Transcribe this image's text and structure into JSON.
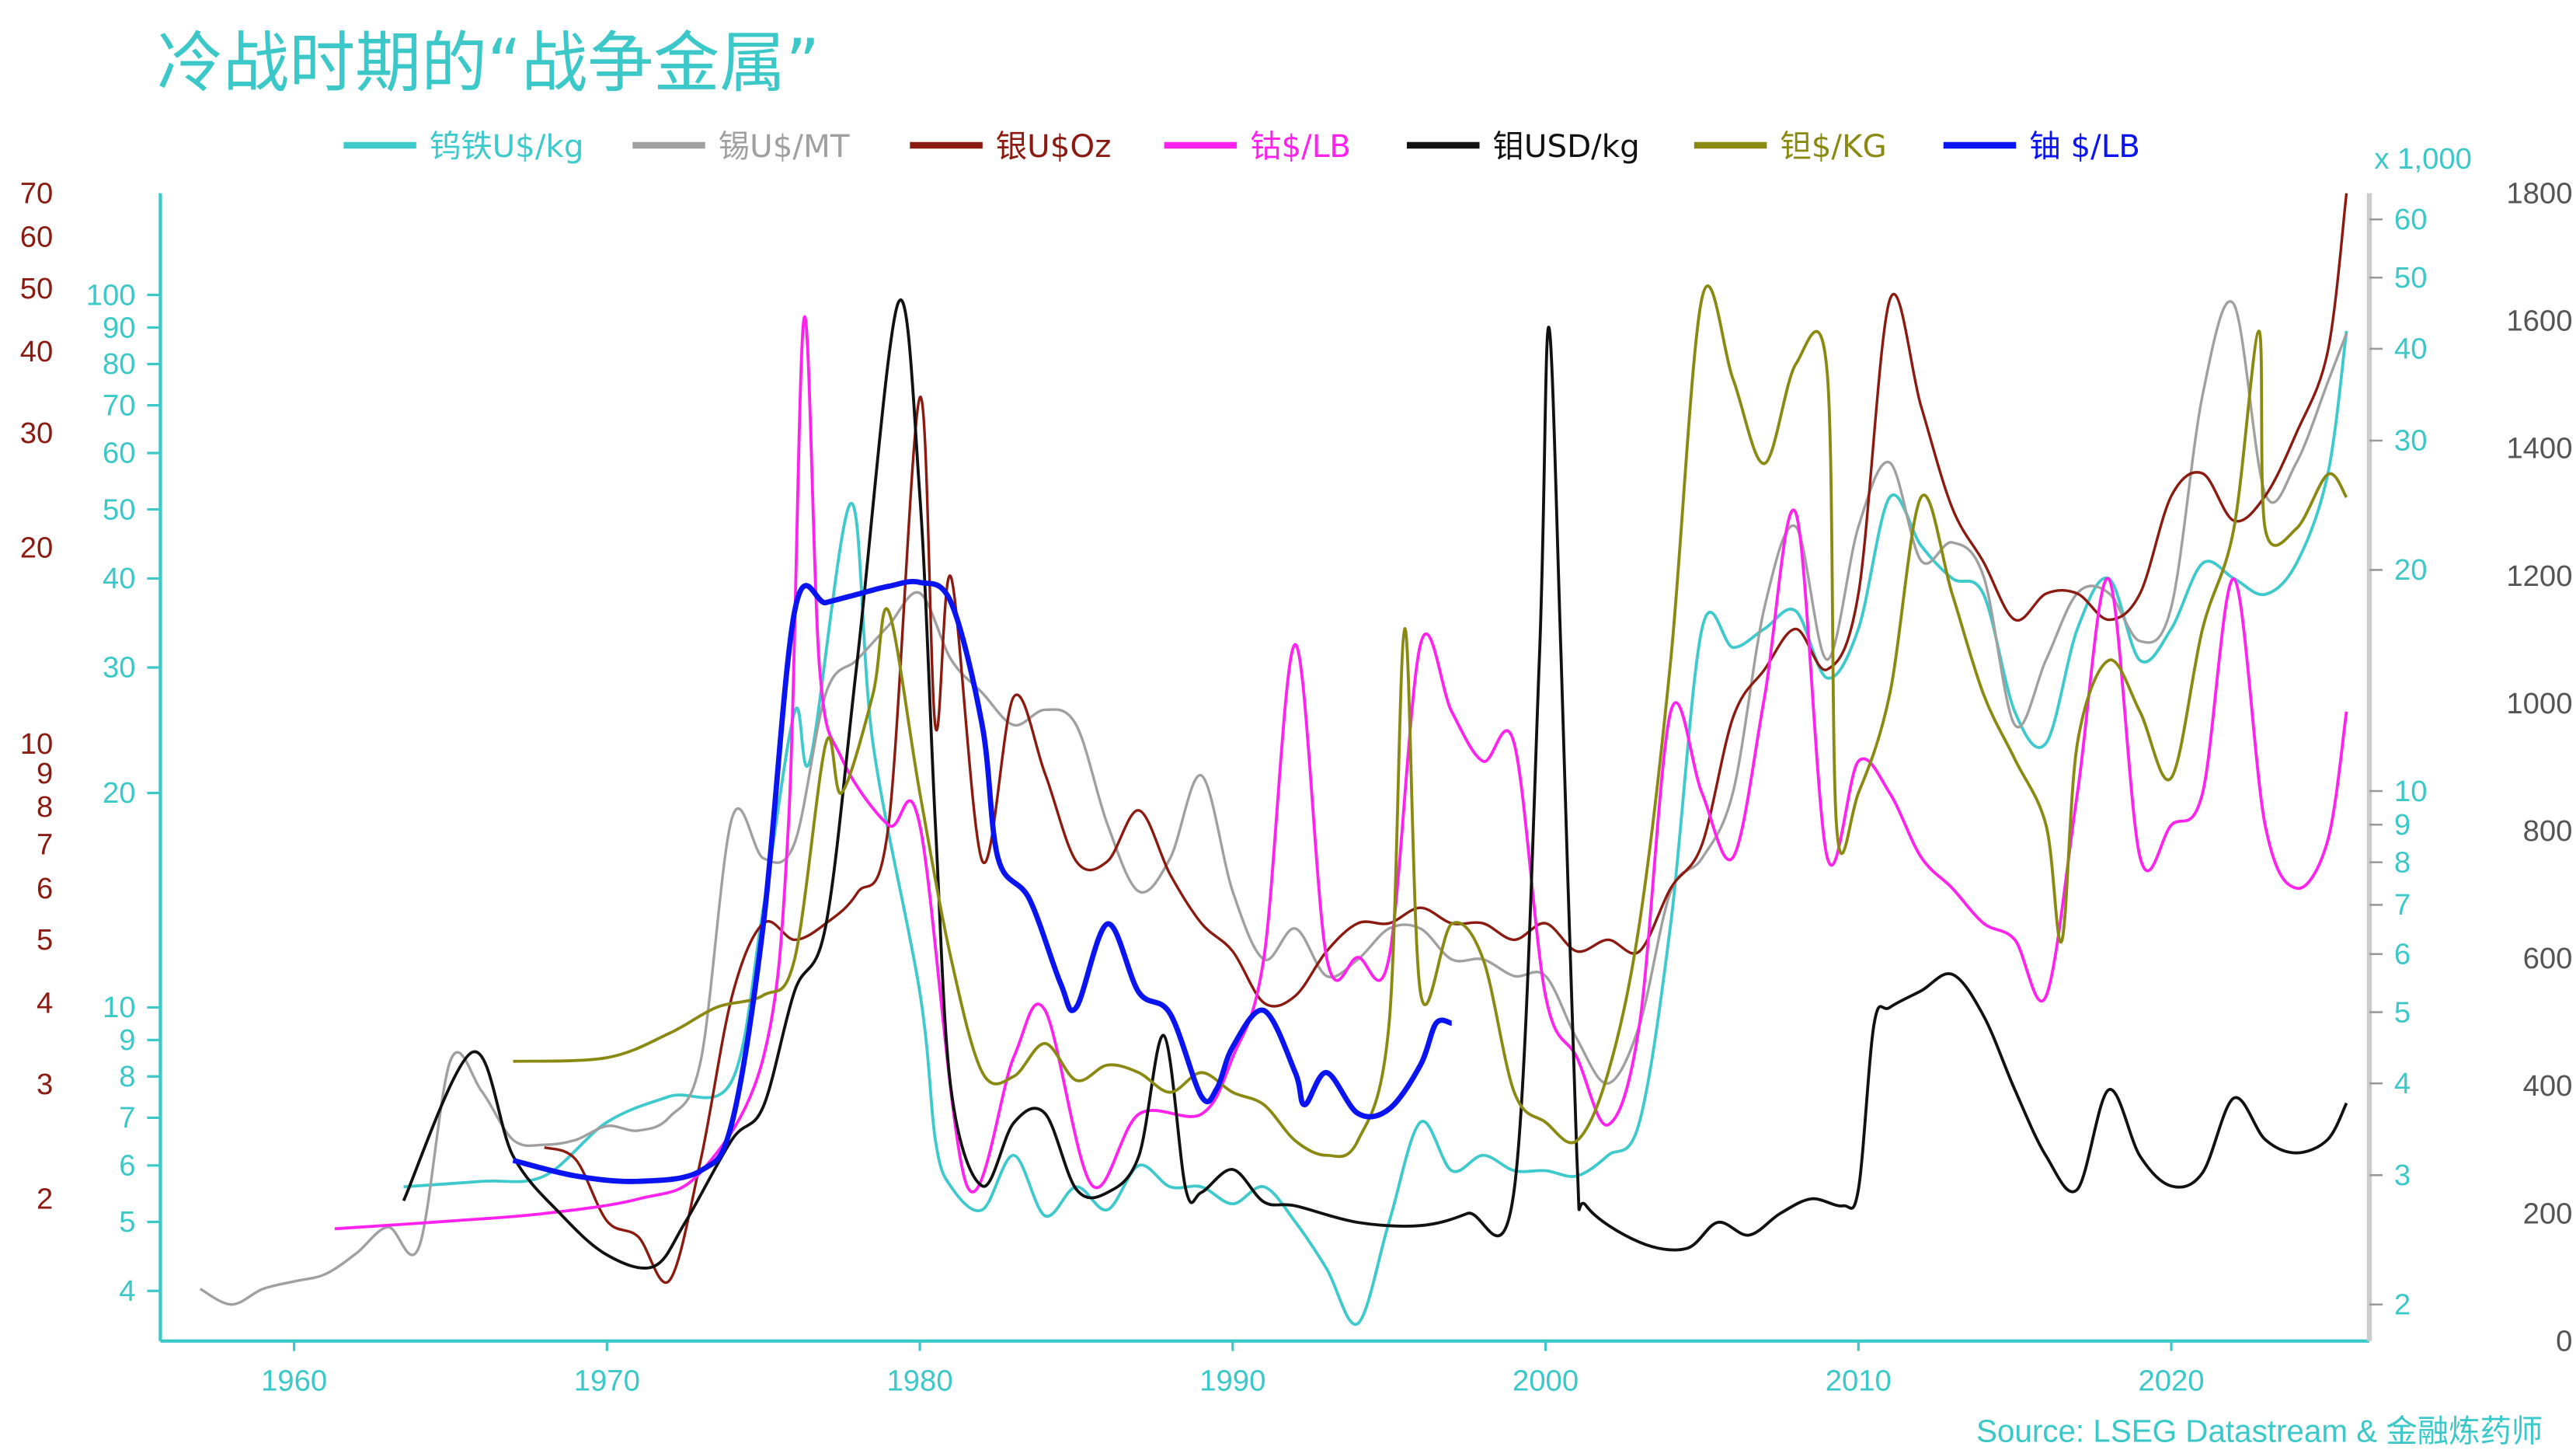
{
  "title": "冷战时期的“战争金属”",
  "source": "Source: LSEG Datastream & 金融炼药师",
  "colors": {
    "accent": "#3cc8c8",
    "tick_grey": "#888888"
  },
  "chart_data": {
    "type": "line",
    "title": "冷战时期的“战争金属”",
    "xlabel": "",
    "xlim": [
      1955.7,
      2026.3
    ],
    "x_ticks": [
      "1960",
      "1970",
      "1980",
      "1990",
      "2000",
      "2010",
      "2020"
    ],
    "grid": false,
    "legend_position": "top",
    "axes": {
      "left_outer": {
        "scale": "log",
        "range": [
          2,
          70
        ],
        "color": "#8b1a10",
        "ticks": [
          "2",
          "3",
          "4",
          "5",
          "6",
          "7",
          "8",
          "9",
          "10",
          "20",
          "30",
          "40",
          "50",
          "60",
          "70"
        ]
      },
      "left_inner": {
        "scale": "log",
        "range": [
          4,
          100
        ],
        "color": "#3cc8c8",
        "ticks": [
          "4",
          "5",
          "6",
          "7",
          "8",
          "9",
          "10",
          "20",
          "30",
          "40",
          "50",
          "60",
          "70",
          "80",
          "90",
          "100"
        ]
      },
      "right_inner": {
        "scale": "log",
        "range": [
          2,
          60
        ],
        "color": "#3cc8c8",
        "unit_label": "x 1,000",
        "ticks": [
          "2",
          "3",
          "4",
          "5",
          "6",
          "7",
          "8",
          "9",
          "10",
          "20",
          "30",
          "40",
          "50",
          "60"
        ]
      },
      "right_outer": {
        "scale": "linear",
        "range": [
          0,
          1800
        ],
        "color": "#555555",
        "ticks": [
          "0",
          "200",
          "400",
          "600",
          "800",
          "1000",
          "1200",
          "1400",
          "1600",
          "1800"
        ]
      }
    },
    "series": [
      {
        "name": "钨铁U$/kg",
        "color": "#3ec9cc",
        "axis": "left_inner",
        "width": 1.8,
        "x": [
          1963.5,
          1966,
          1968,
          1970,
          1972,
          1974,
          1975,
          1976,
          1976.5,
          1977.8,
          1978.5,
          1980,
          1980.5,
          1981,
          1982,
          1983,
          1984,
          1985,
          1986,
          1987,
          1988,
          1989,
          1990,
          1991,
          1992,
          1993,
          1994,
          1995,
          1996,
          1997,
          1998,
          1999,
          2000,
          2001,
          2002,
          2003,
          2004,
          2005,
          2006,
          2007,
          2008,
          2009,
          2010,
          2011,
          2012,
          2013,
          2014,
          2015,
          2016,
          2017,
          2018,
          2019,
          2020,
          2021,
          2022,
          2023,
          2024,
          2025,
          2025.6
        ],
        "y": [
          5.6,
          5.7,
          5.8,
          6.9,
          7.5,
          7.9,
          13.8,
          26,
          22.3,
          51,
          23.5,
          10.5,
          6.5,
          5.6,
          5.2,
          6.2,
          5.1,
          5.6,
          5.2,
          6.0,
          5.6,
          5.6,
          5.3,
          5.6,
          5.0,
          4.3,
          3.6,
          5.0,
          6.9,
          5.9,
          6.2,
          5.9,
          5.9,
          5.8,
          6.2,
          6.9,
          13.1,
          34,
          32,
          34,
          36,
          29,
          34,
          52,
          44.5,
          40,
          38,
          26,
          23.5,
          34,
          40,
          30.7,
          34,
          42,
          40,
          38,
          42,
          56,
          89
        ]
      },
      {
        "name": "锡U$/MT",
        "color": "#a0a0a0",
        "axis": "right_inner",
        "width": 1.6,
        "x": [
          1957,
          1958,
          1959,
          1960,
          1961,
          1962,
          1963,
          1964,
          1965,
          1966,
          1967,
          1968,
          1969,
          1970,
          1971,
          1972,
          1973,
          1974,
          1975,
          1976,
          1977,
          1978,
          1979,
          1980,
          1981,
          1982,
          1983,
          1984,
          1985,
          1986,
          1987,
          1988,
          1989,
          1990,
          1991,
          1992,
          1993,
          1994,
          1995,
          1996,
          1997,
          1998,
          1999,
          2000,
          2001,
          2002,
          2003,
          2004,
          2005,
          2006,
          2007,
          2008,
          2009,
          2010,
          2011,
          2012,
          2013,
          2014,
          2015,
          2016,
          2017,
          2018,
          2019,
          2020,
          2021,
          2022,
          2023,
          2024,
          2025,
          2025.6
        ],
        "y": [
          2.1,
          2.0,
          2.1,
          2.15,
          2.2,
          2.35,
          2.55,
          2.4,
          4.3,
          3.9,
          3.35,
          3.3,
          3.35,
          3.5,
          3.45,
          3.6,
          4.3,
          9.2,
          8.1,
          8.5,
          13.6,
          15.1,
          16.8,
          18.6,
          15.1,
          13.6,
          12.3,
          12.9,
          12.3,
          9.0,
          7.3,
          8.1,
          10.5,
          7.3,
          5.9,
          6.5,
          5.6,
          5.9,
          6.5,
          6.5,
          5.9,
          5.9,
          5.6,
          5.6,
          4.6,
          4.0,
          4.8,
          7.3,
          8.1,
          10,
          17.8,
          22.9,
          15.1,
          22.9,
          28,
          20.6,
          21.8,
          19.6,
          12.3,
          15.1,
          18.6,
          18.6,
          16,
          17.8,
          34.6,
          46,
          25.4,
          28,
          36,
          42
        ]
      },
      {
        "name": "银U$Oz",
        "color": "#8b1a10",
        "axis": "left_outer",
        "width": 1.6,
        "x": [
          1968,
          1969,
          1970,
          1971,
          1972,
          1973,
          1974,
          1975,
          1976,
          1977,
          1978,
          1979,
          1980,
          1980.5,
          1981,
          1982,
          1983,
          1984,
          1985,
          1986,
          1987,
          1988,
          1989,
          1990,
          1991,
          1992,
          1993,
          1994,
          1995,
          1996,
          1997,
          1998,
          1999,
          2000,
          2001,
          2002,
          2003,
          2004,
          2005,
          2006,
          2007,
          2008,
          2009,
          2010,
          2011,
          2012,
          2013,
          2014,
          2015,
          2016,
          2017,
          2018,
          2019,
          2020,
          2021,
          2022,
          2023,
          2024,
          2025,
          2025.6
        ],
        "y": [
          2.4,
          2.3,
          1.85,
          1.75,
          1.5,
          2.3,
          4.1,
          5.3,
          5.0,
          5.3,
          5.9,
          7.5,
          34,
          10.6,
          18,
          6.6,
          11.8,
          9.0,
          6.6,
          6.6,
          7.9,
          6.3,
          5.3,
          4.8,
          4.0,
          4.1,
          4.8,
          5.3,
          5.3,
          5.6,
          5.3,
          5.3,
          5.0,
          5.3,
          4.8,
          5.0,
          4.8,
          6.0,
          7.0,
          11,
          13,
          15,
          13,
          17,
          48,
          33,
          23,
          19,
          15.5,
          17,
          17,
          15.5,
          17,
          24,
          26,
          22,
          24,
          30,
          40,
          70
        ]
      },
      {
        "name": "钴$/LB",
        "color": "#ff22ee",
        "axis": "left_outer",
        "width": 1.8,
        "x": [
          1961.3,
          1965,
          1968,
          1971,
          1973,
          1975,
          1975.8,
          1976.3,
          1976.8,
          1977.5,
          1979,
          1980,
          1981.5,
          1983,
          1984,
          1985.5,
          1987,
          1989,
          1990,
          1991,
          1992,
          1993,
          1994,
          1995,
          1996,
          1997,
          1998,
          1999,
          2000,
          2001,
          2002,
          2003,
          2004,
          2005,
          2006,
          2007,
          2008,
          2009,
          2010,
          2011,
          2012,
          2013,
          2014,
          2015,
          2016,
          2017,
          2018,
          2019,
          2020,
          2021,
          2022,
          2023,
          2024,
          2025,
          2025.6
        ],
        "y": [
          1.8,
          1.85,
          1.9,
          2.0,
          2.2,
          3.3,
          7.5,
          45,
          13,
          9.5,
          7.5,
          7.5,
          2.1,
          3.3,
          3.9,
          2.1,
          2.7,
          2.7,
          3.3,
          4.7,
          14.2,
          4.7,
          4.7,
          4.7,
          14.2,
          11.2,
          9.4,
          10,
          4.1,
          3.3,
          2.6,
          3.7,
          11.2,
          8.4,
          6.7,
          11.8,
          22.6,
          6.7,
          9.4,
          8.4,
          6.7,
          6.0,
          5.3,
          5.0,
          4.1,
          8.4,
          17.9,
          6.7,
          7.5,
          8.4,
          17.9,
          7.5,
          6.0,
          7.1,
          11.2
        ]
      },
      {
        "name": "钼USD/kg",
        "color": "#111111",
        "axis": "right_outer",
        "width": 1.8,
        "x": [
          1963.5,
          1965.7,
          1967,
          1968.5,
          1970,
          1971.5,
          1972.5,
          1974,
          1975,
          1976,
          1977,
          1978,
          1979.3,
          1980,
          1980.5,
          1981,
          1982,
          1983,
          1984,
          1985,
          1986,
          1987,
          1987.8,
          1988.5,
          1989,
          1990,
          1991,
          1992,
          1994,
          1996,
          1997.5,
          1999,
          1999.8,
          2000.1,
          2000.5,
          2001,
          2001.3,
          2003,
          2004.5,
          2005.5,
          2006.5,
          2007.5,
          2008.5,
          2009.5,
          2010,
          2010.5,
          2011,
          2012,
          2013,
          2014,
          2015,
          2016,
          2017,
          2018,
          2019,
          2020,
          2021,
          2022,
          2023,
          2024,
          2025,
          2025.6
        ],
        "y": [
          220,
          453,
          290,
          200,
          135,
          117,
          186,
          316,
          368,
          549,
          653,
          1067,
          1627,
          1326,
          808,
          394,
          243,
          342,
          357,
          238,
          233,
          290,
          479,
          238,
          233,
          269,
          218,
          212,
          186,
          181,
          200,
          238,
          1067,
          1590,
          1067,
          290,
          212,
          155,
          145,
          186,
          166,
          200,
          223,
          212,
          238,
          497,
          523,
          549,
          575,
          510,
          394,
          290,
          238,
          394,
          290,
          243,
          264,
          381,
          316,
          295,
          316,
          373
        ]
      },
      {
        "name": "钽$/KG",
        "color": "#8a8a12",
        "axis": "left_inner",
        "width": 1.8,
        "x": [
          1967,
          1970,
          1972,
          1973.5,
          1975,
          1976,
          1977,
          1977.5,
          1978.5,
          1979,
          1980,
          1981,
          1982,
          1983,
          1984,
          1985,
          1986,
          1987,
          1988,
          1989,
          1990,
          1991,
          1992,
          1993,
          1994,
          1995,
          1995.5,
          1996,
          1997,
          1998,
          1999,
          2000,
          2001,
          2002,
          2003,
          2004,
          2005,
          2006,
          2007,
          2008,
          2009,
          2009.3,
          2010,
          2011,
          2012,
          2013,
          2014,
          2015,
          2016,
          2016.5,
          2017,
          2018,
          2019,
          2020,
          2021,
          2022,
          2022.8,
          2023,
          2024,
          2025,
          2025.6
        ],
        "y": [
          8.4,
          8.5,
          9.2,
          10,
          10.4,
          11.7,
          23.5,
          20,
          27.5,
          36,
          20,
          11.7,
          8.1,
          8,
          8.9,
          7.9,
          8.3,
          8.1,
          7.6,
          8.1,
          7.6,
          7.3,
          6.5,
          6.2,
          6.5,
          9.5,
          34,
          10.5,
          13.1,
          11.7,
          7.6,
          6.9,
          6.5,
          8.1,
          13.1,
          30.7,
          99,
          76,
          58,
          80,
          78,
          18,
          20,
          27.5,
          52,
          38,
          27.5,
          22.3,
          18,
          12.4,
          23.5,
          30.7,
          26,
          21,
          34,
          47,
          89,
          47,
          47,
          56,
          52
        ]
      },
      {
        "name": "铀 $/LB",
        "color": "#0a14f0",
        "axis": "left_inner",
        "width": 3.2,
        "x": [
          1967,
          1969,
          1971,
          1973,
          1974,
          1975,
          1976,
          1977,
          1978,
          1979,
          1980,
          1981,
          1982,
          1982.5,
          1983.5,
          1984.5,
          1985,
          1986,
          1987,
          1988,
          1989,
          1989.5,
          1990,
          1991,
          1992,
          1992.3,
          1993,
          1994,
          1995,
          1996,
          1996.5,
          1997
        ],
        "y": [
          6.1,
          5.8,
          5.7,
          5.9,
          6.9,
          13.1,
          36,
          37,
          38,
          39,
          39.5,
          37,
          24.8,
          16.2,
          14.2,
          10.8,
          10,
          13.1,
          10.5,
          9.8,
          7.5,
          7.7,
          8.8,
          9.9,
          8.1,
          7.3,
          8.1,
          7.1,
          7.2,
          8.3,
          9.5,
          9.5
        ]
      }
    ]
  }
}
